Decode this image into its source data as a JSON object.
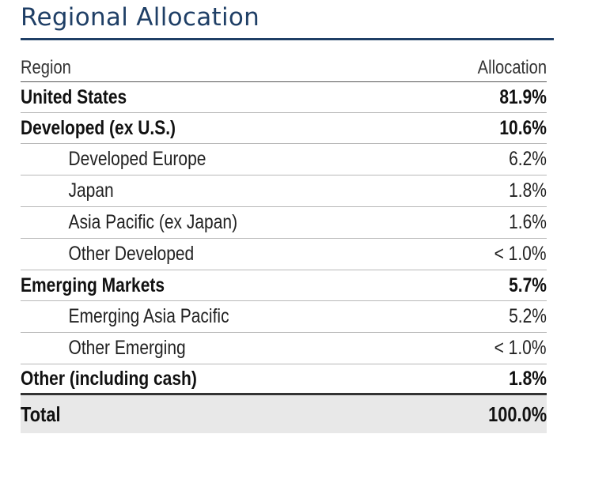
{
  "title": "Regional Allocation",
  "table": {
    "headers": {
      "region": "Region",
      "allocation": "Allocation"
    },
    "rows": [
      {
        "label": "United States",
        "value": "81.9%",
        "level": "major"
      },
      {
        "label": "Developed (ex U.S.)",
        "value": "10.6%",
        "level": "major"
      },
      {
        "label": "Developed Europe",
        "value": "6.2%",
        "level": "sub"
      },
      {
        "label": "Japan",
        "value": "1.8%",
        "level": "sub"
      },
      {
        "label": "Asia Pacific (ex Japan)",
        "value": "1.6%",
        "level": "sub"
      },
      {
        "label": "Other Developed",
        "value": "< 1.0%",
        "level": "sub"
      },
      {
        "label": "Emerging Markets",
        "value": "5.7%",
        "level": "major"
      },
      {
        "label": "Emerging Asia Pacific",
        "value": "5.2%",
        "level": "sub"
      },
      {
        "label": "Other Emerging",
        "value": "< 1.0%",
        "level": "sub"
      },
      {
        "label": "Other (including cash)",
        "value": "1.8%",
        "level": "major"
      }
    ],
    "total": {
      "label": "Total",
      "value": "100.0%"
    }
  },
  "colors": {
    "title": "#1f3f66",
    "total_background": "#e8e8e8"
  }
}
